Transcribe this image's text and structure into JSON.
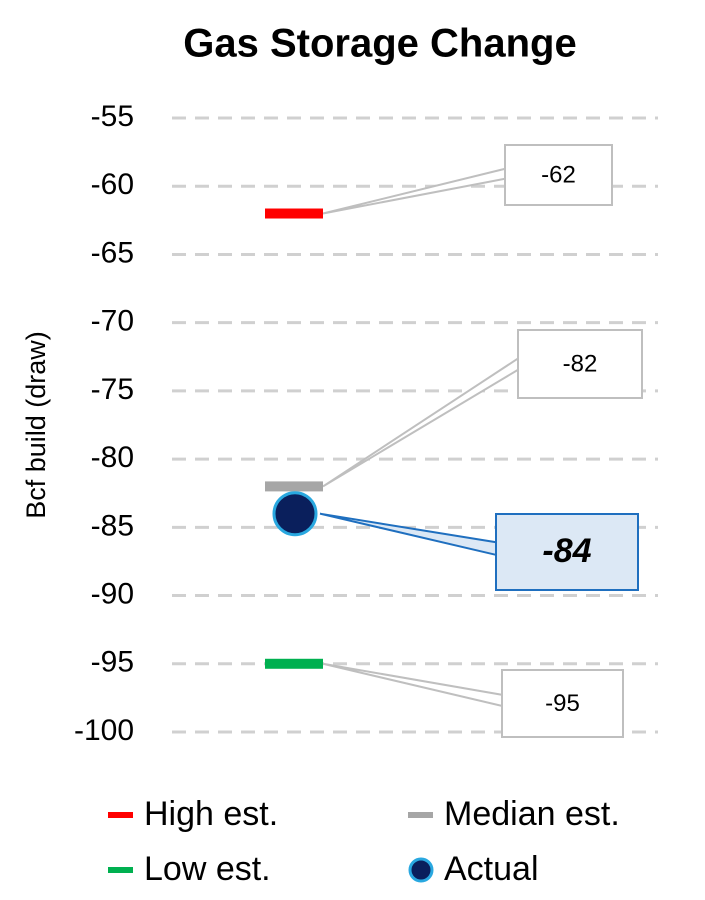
{
  "chart_data": {
    "type": "scatter",
    "title": "Gas Storage Change",
    "ylabel": "Bcf build (draw)",
    "ylim": [
      -100,
      -55
    ],
    "yticks": [
      -55,
      -60,
      -65,
      -70,
      -75,
      -80,
      -85,
      -90,
      -95,
      -100
    ],
    "grid": true,
    "series": [
      {
        "name": "High est.",
        "color": "#ff0000",
        "marker": "dash",
        "values": [
          -62
        ]
      },
      {
        "name": "Median est.",
        "color": "#a6a6a6",
        "marker": "dash",
        "values": [
          -82
        ]
      },
      {
        "name": "Low est.",
        "color": "#00b050",
        "marker": "dash",
        "values": [
          -95
        ]
      },
      {
        "name": "Actual",
        "color": "#0a1f5c",
        "edge_color": "#29a8e0",
        "marker": "circle",
        "values": [
          -84
        ]
      }
    ]
  }
}
